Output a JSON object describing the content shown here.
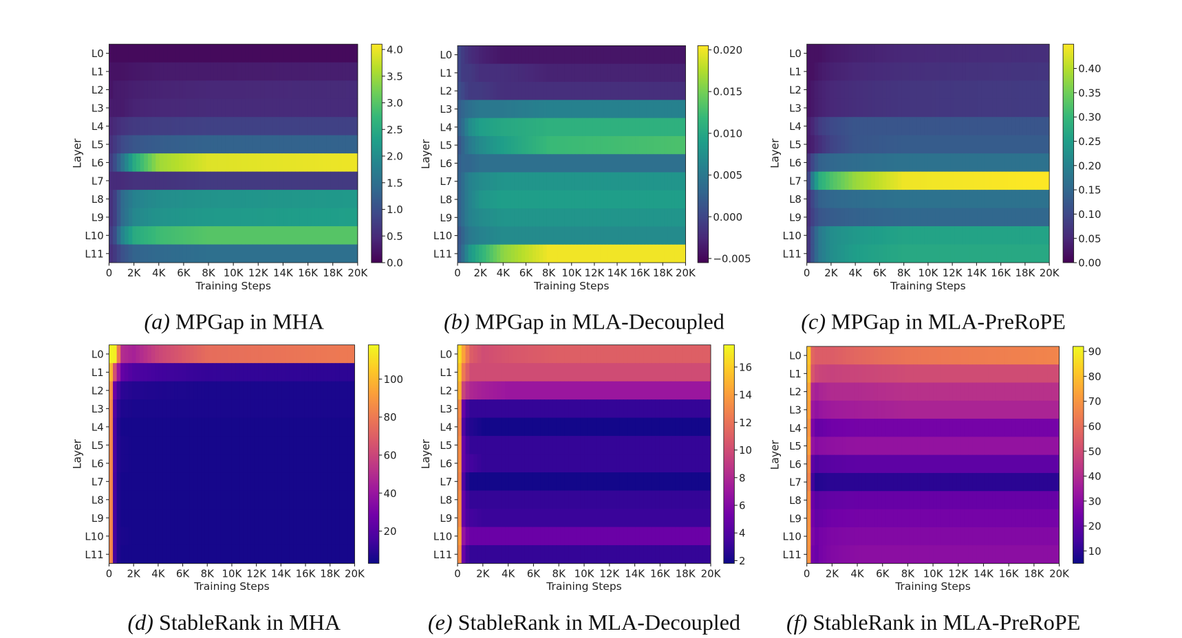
{
  "chart_data": [
    {
      "type": "heatmap",
      "colormap": "viridis",
      "caption_label": "(a)",
      "caption_text": "MPGap in MHA",
      "xlabel": "Training Steps",
      "ylabel": "Layer",
      "xlim": [
        0,
        20000
      ],
      "xticks": [
        0,
        2000,
        4000,
        6000,
        8000,
        10000,
        12000,
        14000,
        16000,
        18000,
        20000
      ],
      "xtick_labels": [
        "0",
        "2K",
        "4K",
        "6K",
        "8K",
        "10K",
        "12K",
        "14K",
        "16K",
        "18K",
        "20K"
      ],
      "layers": [
        "L0",
        "L1",
        "L2",
        "L3",
        "L4",
        "L5",
        "L6",
        "L7",
        "L8",
        "L9",
        "L10",
        "L11"
      ],
      "steps": [
        0,
        500,
        1000,
        2000,
        4000,
        8000,
        20000
      ],
      "color_range": [
        0,
        4.1
      ],
      "colorbar_ticks": [
        0,
        0.5,
        1,
        1.5,
        2,
        2.5,
        3,
        3.5,
        4
      ],
      "colorbar_labels": [
        "0.0",
        "0.5",
        "1.0",
        "1.5",
        "2.0",
        "2.5",
        "3.0",
        "3.5",
        "4.0"
      ],
      "values": [
        [
          0.1,
          0.1,
          0.1,
          0.1,
          0.1,
          0.1,
          0.1
        ],
        [
          0.2,
          0.2,
          0.2,
          0.25,
          0.3,
          0.3,
          0.35
        ],
        [
          0.2,
          0.3,
          0.3,
          0.35,
          0.4,
          0.45,
          0.5
        ],
        [
          0.3,
          0.3,
          0.3,
          0.4,
          0.45,
          0.5,
          0.5
        ],
        [
          0.4,
          0.5,
          0.6,
          0.7,
          0.75,
          0.8,
          0.8
        ],
        [
          0.5,
          0.7,
          0.9,
          1.1,
          1.2,
          1.3,
          1.3
        ],
        [
          0.6,
          1.0,
          1.5,
          2.5,
          3.5,
          3.9,
          4.0
        ],
        [
          0.5,
          0.5,
          0.5,
          0.6,
          0.6,
          0.7,
          0.7
        ],
        [
          0.5,
          0.8,
          1.4,
          1.8,
          2.0,
          2.1,
          2.2
        ],
        [
          0.5,
          0.8,
          1.4,
          1.9,
          2.1,
          2.2,
          2.3
        ],
        [
          0.6,
          1.0,
          1.8,
          2.5,
          2.8,
          3.0,
          3.0
        ],
        [
          0.5,
          0.7,
          1.0,
          1.3,
          1.4,
          1.5,
          1.5
        ]
      ]
    },
    {
      "type": "heatmap",
      "colormap": "viridis",
      "caption_label": "(b)",
      "caption_text": "MPGap in MLA-Decoupled",
      "xlabel": "Training Steps",
      "ylabel": "Layer",
      "xlim": [
        0,
        20000
      ],
      "xticks": [
        0,
        2000,
        4000,
        6000,
        8000,
        10000,
        12000,
        14000,
        16000,
        18000,
        20000
      ],
      "xtick_labels": [
        "0",
        "2K",
        "4K",
        "6K",
        "8K",
        "10K",
        "12K",
        "14K",
        "16K",
        "18K",
        "20K"
      ],
      "layers": [
        "L0",
        "L1",
        "L2",
        "L3",
        "L4",
        "L5",
        "L6",
        "L7",
        "L8",
        "L9",
        "L10",
        "L11"
      ],
      "steps": [
        0,
        500,
        1000,
        2000,
        4000,
        8000,
        20000
      ],
      "color_range": [
        -0.0055,
        0.0205
      ],
      "colorbar_ticks": [
        -0.005,
        0,
        0.005,
        0.01,
        0.015,
        0.02
      ],
      "colorbar_labels": [
        "−0.005",
        "0.000",
        "0.005",
        "0.010",
        "0.015",
        "0.020"
      ],
      "values": [
        [
          0.0005,
          -0.001,
          -0.002,
          -0.003,
          -0.004,
          -0.004,
          -0.004
        ],
        [
          0.0005,
          -0.001,
          -0.001,
          -0.002,
          -0.002,
          -0.003,
          -0.003
        ],
        [
          0.001,
          0,
          -0.001,
          -0.001,
          -0.002,
          -0.002,
          -0.002
        ],
        [
          0.002,
          0.003,
          0.004,
          0.005,
          0.005,
          0.006,
          0.006
        ],
        [
          0.002,
          0.004,
          0.007,
          0.009,
          0.01,
          0.011,
          0.011
        ],
        [
          0.001,
          0.003,
          0.005,
          0.007,
          0.009,
          0.012,
          0.013
        ],
        [
          0.002,
          0.003,
          0.003,
          0.004,
          0.004,
          0.004,
          0.004
        ],
        [
          0.002,
          0.004,
          0.006,
          0.007,
          0.008,
          0.008,
          0.008
        ],
        [
          0.002,
          0.004,
          0.006,
          0.008,
          0.009,
          0.009,
          0.009
        ],
        [
          0.002,
          0.004,
          0.006,
          0.007,
          0.008,
          0.008,
          0.008
        ],
        [
          0.001,
          0.003,
          0.005,
          0.006,
          0.007,
          0.007,
          0.007
        ],
        [
          0.001,
          0.004,
          0.008,
          0.011,
          0.016,
          0.02,
          0.02
        ]
      ]
    },
    {
      "type": "heatmap",
      "colormap": "viridis",
      "caption_label": "(c)",
      "caption_text": "MPGap in MLA-PreRoPE",
      "xlabel": "Training Steps",
      "ylabel": "Layer",
      "xlim": [
        0,
        20000
      ],
      "xticks": [
        0,
        2000,
        4000,
        6000,
        8000,
        10000,
        12000,
        14000,
        16000,
        18000,
        20000
      ],
      "xtick_labels": [
        "0",
        "2K",
        "4K",
        "6K",
        "8K",
        "10K",
        "12K",
        "14K",
        "16K",
        "18K",
        "20K"
      ],
      "layers": [
        "L0",
        "L1",
        "L2",
        "L3",
        "L4",
        "L5",
        "L6",
        "L7",
        "L8",
        "L9",
        "L10",
        "L11"
      ],
      "steps": [
        0,
        500,
        1000,
        2000,
        4000,
        8000,
        20000
      ],
      "color_range": [
        0,
        0.45
      ],
      "colorbar_ticks": [
        0,
        0.05,
        0.1,
        0.15,
        0.2,
        0.25,
        0.3,
        0.35,
        0.4
      ],
      "colorbar_labels": [
        "0.00",
        "0.05",
        "0.10",
        "0.15",
        "0.20",
        "0.25",
        "0.30",
        "0.35",
        "0.40"
      ],
      "values": [
        [
          0.02,
          0.02,
          0.02,
          0.03,
          0.04,
          0.05,
          0.06
        ],
        [
          0.02,
          0.02,
          0.03,
          0.04,
          0.05,
          0.06,
          0.07
        ],
        [
          0.02,
          0.03,
          0.04,
          0.05,
          0.06,
          0.07,
          0.08
        ],
        [
          0.02,
          0.03,
          0.04,
          0.05,
          0.06,
          0.07,
          0.08
        ],
        [
          0.03,
          0.05,
          0.08,
          0.1,
          0.12,
          0.12,
          0.12
        ],
        [
          0.03,
          0.04,
          0.06,
          0.09,
          0.12,
          0.13,
          0.13
        ],
        [
          0.05,
          0.1,
          0.14,
          0.15,
          0.16,
          0.17,
          0.17
        ],
        [
          0.05,
          0.2,
          0.28,
          0.32,
          0.38,
          0.44,
          0.45
        ],
        [
          0.05,
          0.1,
          0.14,
          0.15,
          0.16,
          0.17,
          0.17
        ],
        [
          0.05,
          0.09,
          0.12,
          0.13,
          0.14,
          0.15,
          0.15
        ],
        [
          0.05,
          0.12,
          0.18,
          0.22,
          0.24,
          0.26,
          0.26
        ],
        [
          0.05,
          0.12,
          0.18,
          0.22,
          0.25,
          0.27,
          0.27
        ]
      ]
    },
    {
      "type": "heatmap",
      "colormap": "plasma",
      "caption_label": "(d)",
      "caption_text": "StableRank in MHA",
      "xlabel": "Training Steps",
      "ylabel": "Layer",
      "xlim": [
        0,
        20000
      ],
      "xticks": [
        0,
        2000,
        4000,
        6000,
        8000,
        10000,
        12000,
        14000,
        16000,
        18000,
        20000
      ],
      "xtick_labels": [
        "0",
        "2K",
        "4K",
        "6K",
        "8K",
        "10K",
        "12K",
        "14K",
        "16K",
        "18K",
        "20K"
      ],
      "layers": [
        "L0",
        "L1",
        "L2",
        "L3",
        "L4",
        "L5",
        "L6",
        "L7",
        "L8",
        "L9",
        "L10",
        "L11"
      ],
      "steps": [
        0,
        500,
        1000,
        2000,
        4000,
        8000,
        20000
      ],
      "color_range": [
        3,
        118
      ],
      "colorbar_ticks": [
        20,
        40,
        60,
        80,
        100
      ],
      "colorbar_labels": [
        "20",
        "40",
        "60",
        "80",
        "100"
      ],
      "values": [
        [
          118,
          115,
          50,
          45,
          60,
          75,
          80
        ],
        [
          118,
          60,
          25,
          18,
          15,
          12,
          10
        ],
        [
          118,
          20,
          10,
          8,
          7,
          6,
          6
        ],
        [
          118,
          12,
          7,
          6,
          6,
          6,
          6
        ],
        [
          118,
          10,
          5,
          5,
          5,
          5,
          5
        ],
        [
          118,
          10,
          6,
          5,
          5,
          5,
          5
        ],
        [
          118,
          10,
          6,
          5,
          5,
          5,
          5
        ],
        [
          118,
          9,
          5,
          5,
          5,
          5,
          5
        ],
        [
          118,
          9,
          5,
          5,
          5,
          5,
          5
        ],
        [
          118,
          9,
          5,
          5,
          5,
          5,
          5
        ],
        [
          118,
          9,
          6,
          5,
          5,
          5,
          5
        ],
        [
          118,
          9,
          5,
          5,
          5,
          5,
          5
        ]
      ]
    },
    {
      "type": "heatmap",
      "colormap": "plasma",
      "caption_label": "(e)",
      "caption_text": "StableRank in MLA-Decoupled",
      "xlabel": "Training Steps",
      "ylabel": "Layer",
      "xlim": [
        0,
        20000
      ],
      "xticks": [
        0,
        2000,
        4000,
        6000,
        8000,
        10000,
        12000,
        14000,
        16000,
        18000,
        20000
      ],
      "xtick_labels": [
        "0",
        "2K",
        "4K",
        "6K",
        "8K",
        "10K",
        "12K",
        "14K",
        "16K",
        "18K",
        "20K"
      ],
      "layers": [
        "L0",
        "L1",
        "L2",
        "L3",
        "L4",
        "L5",
        "L6",
        "L7",
        "L8",
        "L9",
        "L10",
        "L11"
      ],
      "steps": [
        0,
        500,
        1000,
        2000,
        4000,
        8000,
        20000
      ],
      "color_range": [
        1.8,
        17.6
      ],
      "colorbar_ticks": [
        2,
        4,
        6,
        8,
        10,
        12,
        14,
        16
      ],
      "colorbar_labels": [
        "2",
        "4",
        "6",
        "8",
        "10",
        "12",
        "14",
        "16"
      ],
      "values": [
        [
          17.5,
          14,
          11,
          10,
          10.5,
          11,
          11
        ],
        [
          17.5,
          12,
          10,
          10,
          10,
          10,
          10
        ],
        [
          17.5,
          9,
          8,
          7.5,
          7,
          7,
          7
        ],
        [
          17.5,
          4,
          3,
          3,
          3,
          3,
          3
        ],
        [
          17.5,
          3,
          2.5,
          2,
          2,
          2,
          2
        ],
        [
          17.5,
          4,
          3,
          3,
          3,
          3,
          3
        ],
        [
          17.5,
          4,
          3.5,
          3,
          3,
          3,
          3
        ],
        [
          17.5,
          3,
          2,
          2,
          2,
          2,
          2
        ],
        [
          17.5,
          4,
          3,
          3,
          3,
          3,
          3
        ],
        [
          17.5,
          4,
          3.5,
          3.2,
          3.2,
          3.2,
          3.2
        ],
        [
          17.5,
          6,
          5,
          5,
          5,
          5,
          5
        ],
        [
          17.5,
          4,
          3,
          3,
          3,
          3,
          3
        ]
      ]
    },
    {
      "type": "heatmap",
      "colormap": "plasma",
      "caption_label": "(f)",
      "caption_text": "StableRank in MLA-PreRoPE",
      "xlabel": "Training Steps",
      "ylabel": "Layer",
      "xlim": [
        0,
        20000
      ],
      "xticks": [
        0,
        2000,
        4000,
        6000,
        8000,
        10000,
        12000,
        14000,
        16000,
        18000,
        20000
      ],
      "xtick_labels": [
        "0",
        "2K",
        "4K",
        "6K",
        "8K",
        "10K",
        "12K",
        "14K",
        "16K",
        "18K",
        "20K"
      ],
      "layers": [
        "L0",
        "L1",
        "L2",
        "L3",
        "L4",
        "L5",
        "L6",
        "L7",
        "L8",
        "L9",
        "L10",
        "L11"
      ],
      "steps": [
        0,
        500,
        1000,
        2000,
        4000,
        8000,
        20000
      ],
      "color_range": [
        5,
        92
      ],
      "colorbar_ticks": [
        10,
        20,
        30,
        40,
        50,
        60,
        70,
        80,
        90
      ],
      "colorbar_labels": [
        "10",
        "20",
        "30",
        "40",
        "50",
        "60",
        "70",
        "80",
        "90"
      ],
      "values": [
        [
          92,
          55,
          55,
          55,
          58,
          62,
          66
        ],
        [
          92,
          50,
          48,
          47,
          48,
          50,
          50
        ],
        [
          92,
          35,
          38,
          40,
          40,
          42,
          42
        ],
        [
          92,
          30,
          33,
          35,
          36,
          38,
          38
        ],
        [
          92,
          22,
          22,
          24,
          25,
          25,
          25
        ],
        [
          92,
          28,
          30,
          31,
          32,
          32,
          32
        ],
        [
          92,
          15,
          18,
          19,
          20,
          20,
          20
        ],
        [
          92,
          8,
          9,
          10,
          10,
          10,
          10
        ],
        [
          92,
          18,
          20,
          21,
          22,
          22,
          22
        ],
        [
          92,
          20,
          22,
          24,
          25,
          25,
          25
        ],
        [
          92,
          22,
          25,
          27,
          28,
          28,
          28
        ],
        [
          92,
          20,
          25,
          28,
          30,
          30,
          30
        ]
      ]
    }
  ]
}
